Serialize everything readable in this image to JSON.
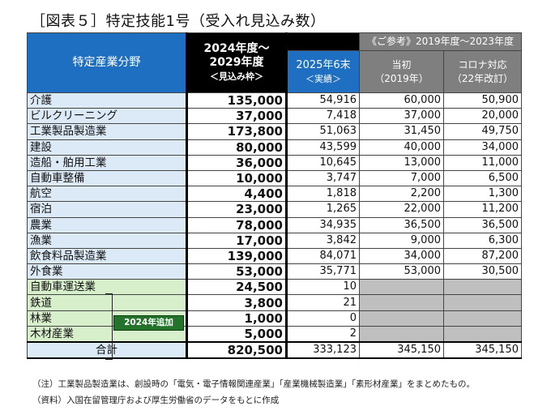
{
  "title": "［図表５］特定技能1号（受入れ見込み数）",
  "header": {
    "field": "特定産業分野",
    "col_plan_line1": "2024年度～",
    "col_plan_line2": "2029年度",
    "col_plan_line3": "＜見込み枠＞",
    "col_actual_line1": "2025年6末",
    "col_actual_line2": "＜実績＞",
    "reference": "《ご参考》2019年度～2023年度",
    "col_initial_line1": "当初",
    "col_initial_line2": "（2019年）",
    "col_covid_line1": "コロナ対応",
    "col_covid_line2": "（22年改訂）"
  },
  "rows": [
    {
      "name": "介護",
      "plan": "135,000",
      "actual": "54,916",
      "initial": "60,000",
      "covid": "50,900"
    },
    {
      "name": "ビルクリーニング",
      "plan": "37,000",
      "actual": "7,418",
      "initial": "37,000",
      "covid": "20,000"
    },
    {
      "name": "工業製品製造業",
      "plan": "173,800",
      "actual": "51,063",
      "initial": "31,450",
      "covid": "49,750"
    },
    {
      "name": "建設",
      "plan": "80,000",
      "actual": "43,599",
      "initial": "40,000",
      "covid": "34,000"
    },
    {
      "name": "造船・舶用工業",
      "plan": "36,000",
      "actual": "10,645",
      "initial": "13,000",
      "covid": "11,000"
    },
    {
      "name": "自動車整備",
      "plan": "10,000",
      "actual": "3,747",
      "initial": "7,000",
      "covid": "6,500"
    },
    {
      "name": "航空",
      "plan": "4,400",
      "actual": "1,818",
      "initial": "2,200",
      "covid": "1,300"
    },
    {
      "name": "宿泊",
      "plan": "23,000",
      "actual": "1,265",
      "initial": "22,000",
      "covid": "11,200"
    },
    {
      "name": "農業",
      "plan": "78,000",
      "actual": "34,935",
      "initial": "36,500",
      "covid": "36,500"
    },
    {
      "name": "漁業",
      "plan": "17,000",
      "actual": "3,842",
      "initial": "9,000",
      "covid": "6,300"
    },
    {
      "name": "飲食料品製造業",
      "plan": "139,000",
      "actual": "84,071",
      "initial": "34,000",
      "covid": "87,200"
    },
    {
      "name": "外食業",
      "plan": "53,000",
      "actual": "35,771",
      "initial": "53,000",
      "covid": "30,500"
    },
    {
      "name": "自動車運送業",
      "plan": "24,500",
      "actual": "10",
      "initial": "",
      "covid": "",
      "added": true
    },
    {
      "name": "鉄道",
      "plan": "3,800",
      "actual": "21",
      "initial": "",
      "covid": "",
      "added": true
    },
    {
      "name": "林業",
      "plan": "1,000",
      "actual": "0",
      "initial": "",
      "covid": "",
      "added": true
    },
    {
      "name": "木材産業",
      "plan": "5,000",
      "actual": "2",
      "initial": "",
      "covid": "",
      "added": true
    }
  ],
  "total": {
    "name": "合計",
    "plan": "820,500",
    "actual": "333,123",
    "initial": "345,150",
    "covid": "345,150"
  },
  "badge": "2024年追加",
  "note": "（注）工業製品製造業は、創設時の「電気・電子情報関連産業」「産業機械製造業」「素形材産業」をまとめたもの。",
  "source": "（資料）入国在留管理庁および厚生労働省のデータをもとに作成",
  "colors": {
    "header_blue": "#1e6fc2",
    "row_blue": "#dce9f6",
    "row_green": "#d8efcc",
    "badge_green": "#23732a",
    "header_gray": "#7f7f7f",
    "cell_gray": "#bfbfbf"
  }
}
